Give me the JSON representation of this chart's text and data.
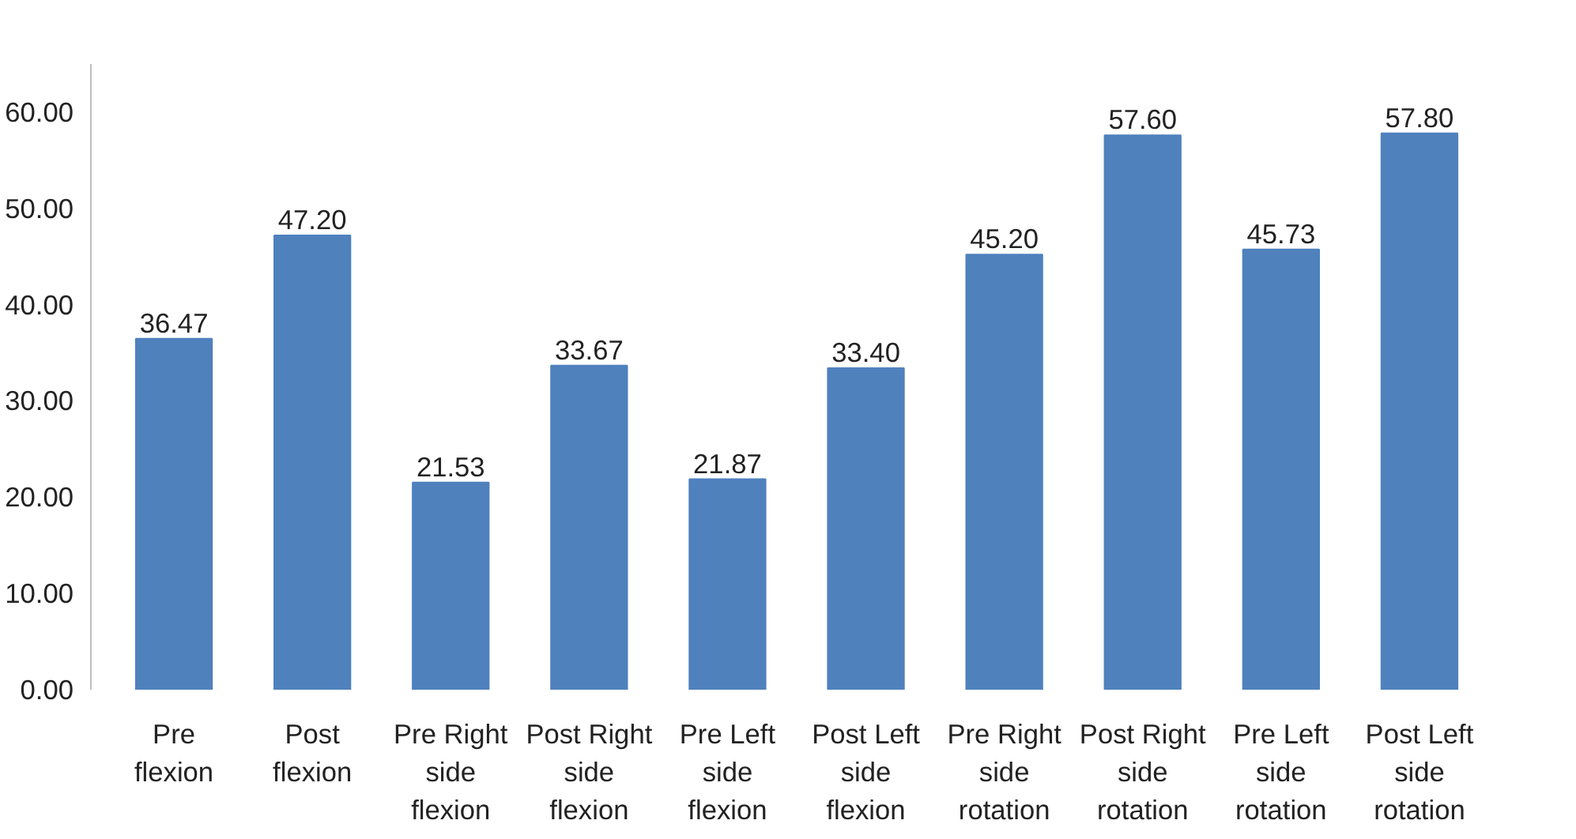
{
  "chart_data": {
    "type": "bar",
    "categories": [
      "Pre flexion",
      "Post flexion",
      "Pre Right side flexion",
      "Post Right side flexion",
      "Pre Left side flexion",
      "Post Left side flexion",
      "Pre Right side rotation",
      "Post Right side rotation",
      "Pre Left side rotation",
      "Post Left side rotation"
    ],
    "values": [
      36.47,
      47.2,
      21.53,
      33.67,
      21.87,
      33.4,
      45.2,
      57.6,
      45.73,
      57.8
    ],
    "color": "#4f81bd",
    "value_labels": [
      "36.47",
      "47.20",
      "21.53",
      "33.67",
      "21.87",
      "33.40",
      "45.20",
      "57.60",
      "45.73",
      "57.80"
    ],
    "ylim": [
      0,
      65
    ],
    "yticks": [
      {
        "value": 0,
        "label": "0.00"
      },
      {
        "value": 10,
        "label": "10.00"
      },
      {
        "value": 20,
        "label": "20.00"
      },
      {
        "value": 30,
        "label": "30.00"
      },
      {
        "value": 40,
        "label": "40.00"
      },
      {
        "value": 50,
        "label": "50.00"
      },
      {
        "value": 60,
        "label": "60.00"
      }
    ],
    "grid": false
  }
}
